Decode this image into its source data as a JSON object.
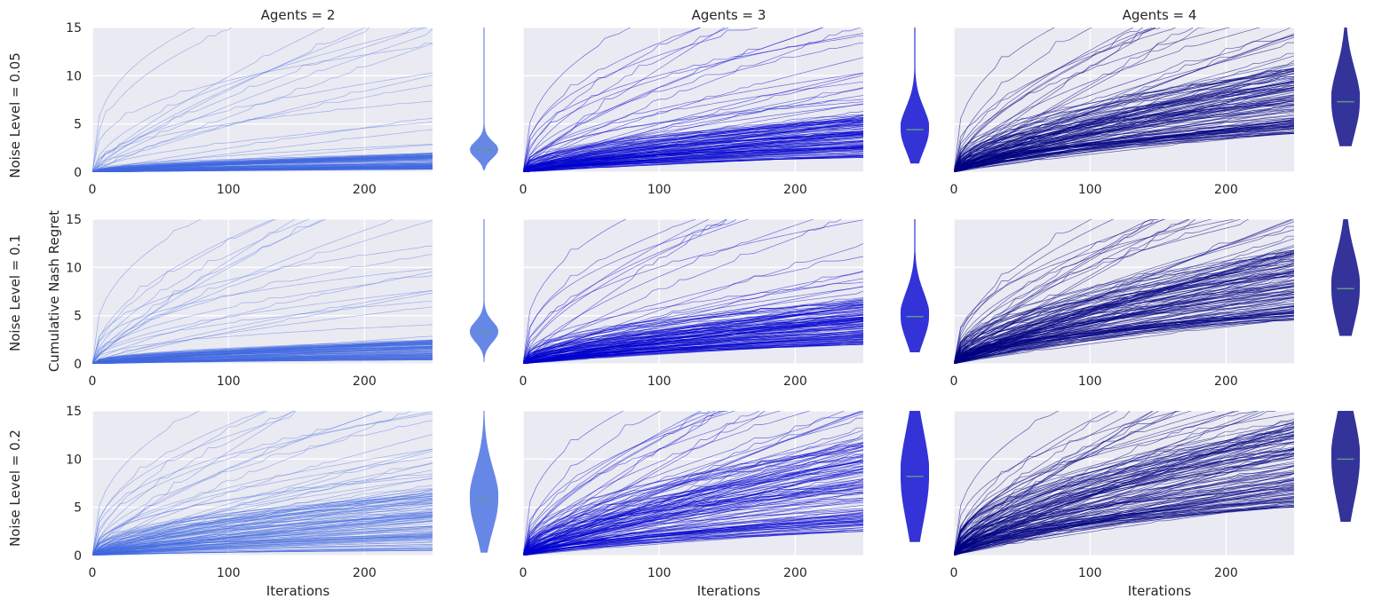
{
  "chart_data": {
    "type": "line",
    "ylabel": "Cumulative Nash Regret",
    "xlabel": "Iterations",
    "xlim": [
      0,
      250
    ],
    "ylim": [
      0,
      15
    ],
    "xticks": [
      0,
      100,
      200
    ],
    "yticks": [
      0,
      5,
      10,
      15
    ],
    "grid": true,
    "column_titles": [
      "Agents = 2",
      "Agents = 3",
      "Agents = 4"
    ],
    "row_titles": [
      "Noise Level = 0.05",
      "Noise Level = 0.1",
      "Noise Level = 0.2"
    ],
    "colors": {
      "agents_2": "#4169e1",
      "agents_3": "#0000cd",
      "agents_4": "#000080",
      "background": "#eaeaf2",
      "median_line": "#5a9a8a"
    },
    "panels": [
      {
        "agents": 2,
        "noise": 0.05,
        "final_regret_median": 2.3,
        "final_regret_range": [
          0.2,
          15
        ],
        "typical_final_range": [
          0.3,
          2.0
        ]
      },
      {
        "agents": 3,
        "noise": 0.05,
        "final_regret_median": 4.4,
        "final_regret_range": [
          0.9,
          15
        ],
        "typical_final_range": [
          1.5,
          6
        ]
      },
      {
        "agents": 4,
        "noise": 0.05,
        "final_regret_median": 7.3,
        "final_regret_range": [
          2.7,
          15
        ],
        "typical_final_range": [
          4,
          11
        ]
      },
      {
        "agents": 2,
        "noise": 0.1,
        "final_regret_median": 3.3,
        "final_regret_range": [
          0.2,
          15
        ],
        "typical_final_range": [
          0.4,
          2.5
        ]
      },
      {
        "agents": 3,
        "noise": 0.1,
        "final_regret_median": 4.9,
        "final_regret_range": [
          1.2,
          15
        ],
        "typical_final_range": [
          2,
          7
        ]
      },
      {
        "agents": 4,
        "noise": 0.1,
        "final_regret_median": 7.8,
        "final_regret_range": [
          2.9,
          15
        ],
        "typical_final_range": [
          4.5,
          12
        ]
      },
      {
        "agents": 2,
        "noise": 0.2,
        "final_regret_median": 5.8,
        "final_regret_range": [
          0.3,
          15
        ],
        "typical_final_range": [
          0.5,
          7
        ]
      },
      {
        "agents": 3,
        "noise": 0.2,
        "final_regret_median": 8.2,
        "final_regret_range": [
          1.4,
          15
        ],
        "typical_final_range": [
          2.5,
          12
        ]
      },
      {
        "agents": 4,
        "noise": 0.2,
        "final_regret_median": 10.0,
        "final_regret_range": [
          3.5,
          15
        ],
        "typical_final_range": [
          5,
          14
        ]
      }
    ]
  }
}
